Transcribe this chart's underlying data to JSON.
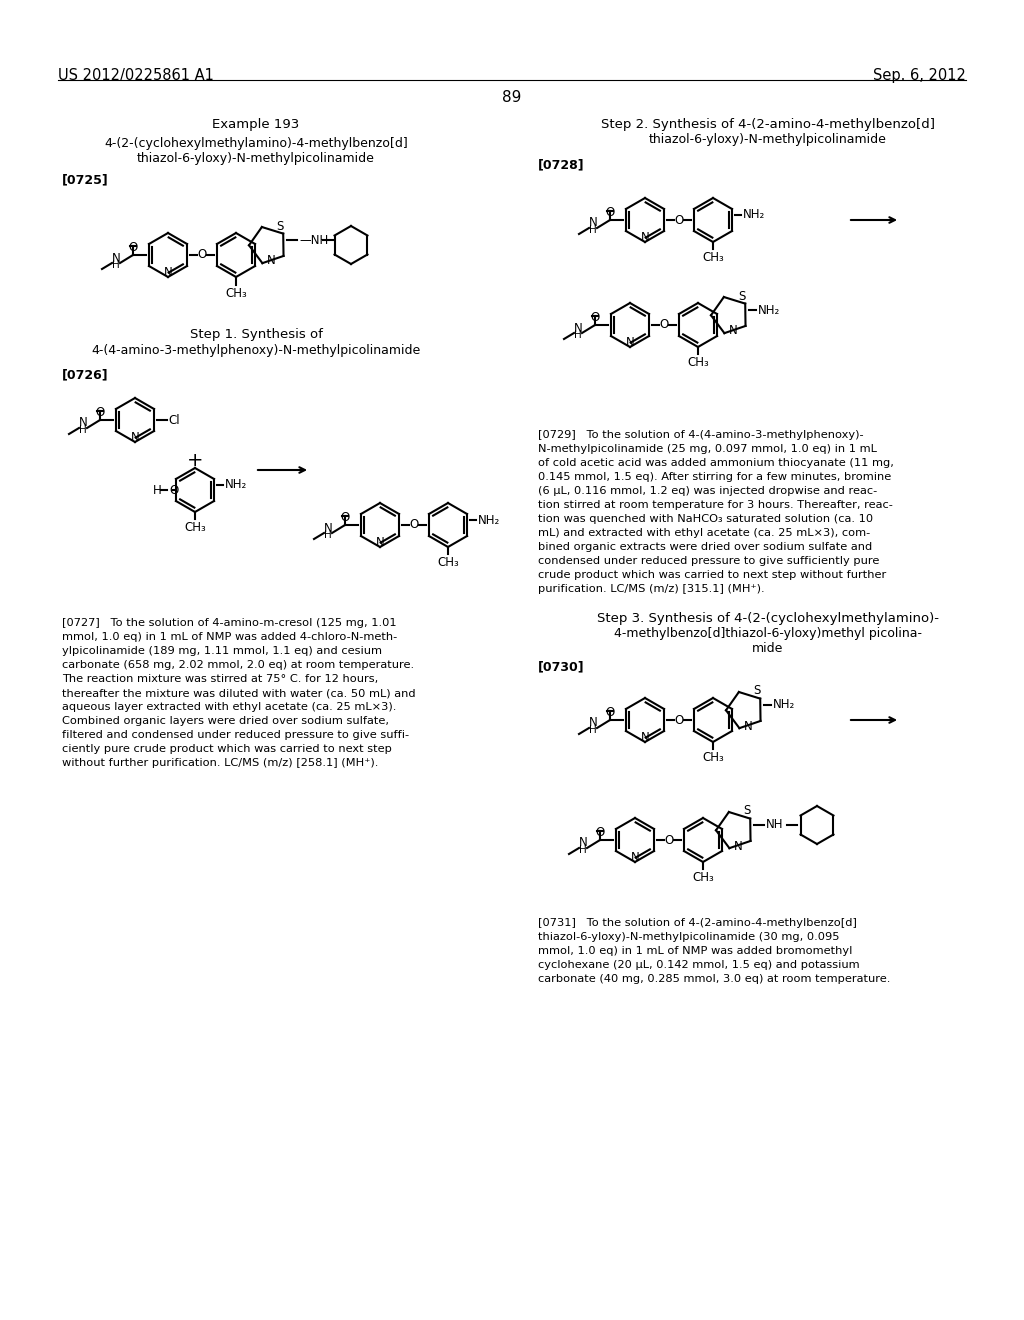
{
  "page_number": "89",
  "patent_number": "US 2012/0225861 A1",
  "patent_date": "Sep. 6, 2012",
  "background_color": "#ffffff",
  "title_example": "Example 193",
  "title_compound_line1": "4-(2-(cyclohexylmethylamino)-4-methylbenzo[d]",
  "title_compound_line2": "thiazol-6-yloxy)-N-methylpicolinamide",
  "label_0725": "[0725]",
  "label_0726": "[0726]",
  "label_0727": "[0727]",
  "label_0728": "[0728]",
  "label_0729": "[0729]",
  "label_0730": "[0730]",
  "label_0731": "[0731]",
  "step1_line1": "Step 1. Synthesis of",
  "step1_line2": "4-(4-amino-3-methylphenoxy)-N-methylpicolinamide",
  "step2_line1": "Step 2. Synthesis of 4-(2-amino-4-methylbenzo[d]",
  "step2_line2": "thiazol-6-yloxy)-N-methylpicolinamide",
  "step3_line1": "Step 3. Synthesis of 4-(2-(cyclohexylmethylamino)-",
  "step3_line2": "4-methylbenzo[d]thiazol-6-yloxy)methyl picolina-",
  "step3_line3": "mide",
  "text_0727_lines": [
    "[0727]   To the solution of 4-amino-m-cresol (125 mg, 1.01",
    "mmol, 1.0 eq) in 1 mL of NMP was added 4-chloro-N-meth-",
    "ylpicolinamide (189 mg, 1.11 mmol, 1.1 eq) and cesium",
    "carbonate (658 mg, 2.02 mmol, 2.0 eq) at room temperature.",
    "The reaction mixture was stirred at 75° C. for 12 hours,",
    "thereafter the mixture was diluted with water (ca. 50 mL) and",
    "aqueous layer extracted with ethyl acetate (ca. 25 mL×3).",
    "Combined organic layers were dried over sodium sulfate,",
    "filtered and condensed under reduced pressure to give suffi-",
    "ciently pure crude product which was carried to next step",
    "without further purification. LC/MS (m/z) [258.1] (MH⁺)."
  ],
  "text_0729_lines": [
    "[0729]   To the solution of 4-(4-amino-3-methylphenoxy)-",
    "N-methylpicolinamide (25 mg, 0.097 mmol, 1.0 eq) in 1 mL",
    "of cold acetic acid was added ammonium thiocyanate (11 mg,",
    "0.145 mmol, 1.5 eq). After stirring for a few minutes, bromine",
    "(6 μL, 0.116 mmol, 1.2 eq) was injected dropwise and reac-",
    "tion stirred at room temperature for 3 hours. Thereafter, reac-",
    "tion was quenched with NaHCO₃ saturated solution (ca. 10",
    "mL) and extracted with ethyl acetate (ca. 25 mL×3), com-",
    "bined organic extracts were dried over sodium sulfate and",
    "condensed under reduced pressure to give sufficiently pure",
    "crude product which was carried to next step without further",
    "purification. LC/MS (m/z) [315.1] (MH⁺)."
  ],
  "text_0731_lines": [
    "[0731]   To the solution of 4-(2-amino-4-methylbenzo[d]",
    "thiazol-6-yloxy)-N-methylpicolinamide (30 mg, 0.095",
    "mmol, 1.0 eq) in 1 mL of NMP was added bromomethyl",
    "cyclohexane (20 μL, 0.142 mmol, 1.5 eq) and potassium",
    "carbonate (40 mg, 0.285 mmol, 3.0 eq) at room temperature."
  ]
}
